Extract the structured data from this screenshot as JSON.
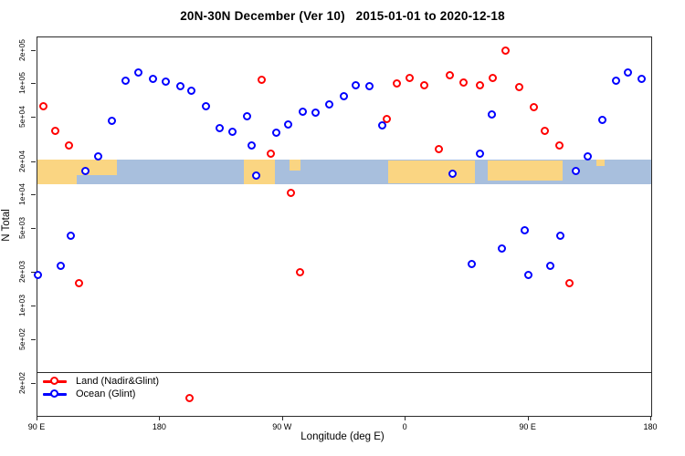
{
  "title": "20N-30N December (Ver 10)   2015-01-01 to 2020-12-18",
  "colors": {
    "land_marker": "#FF0000",
    "ocean_marker": "#0000FF",
    "band_ocean": "#A8BFDD",
    "band_land": "#FAD582",
    "axis": "#2b2b2b"
  },
  "chart_data": {
    "type": "scatter",
    "title": "20N-30N December (Ver 10)  2015-01-01 to 2020-12-18",
    "xlabel": "Longitude (deg E)",
    "ylabel": "N Total",
    "grid": false,
    "x_axis": {
      "note": "longitude increases eastward from 90E, wrapping through 180, 90W, 0, 90E to 180",
      "lon_min": 90,
      "lon_max": 540,
      "ticks": [
        {
          "lon": 90,
          "label": "90 E"
        },
        {
          "lon": 180,
          "label": "180"
        },
        {
          "lon": 270,
          "label": "90 W"
        },
        {
          "lon": 360,
          "label": "0"
        },
        {
          "lon": 450,
          "label": "90 E"
        },
        {
          "lon": 540,
          "label": "180"
        }
      ]
    },
    "y_axis": {
      "scale": "log",
      "min": 104,
      "max": 263000,
      "ticks": [
        {
          "value": 200000,
          "label": "2e+05"
        },
        {
          "value": 100000,
          "label": "1e+05"
        },
        {
          "value": 50000,
          "label": "5e+04"
        },
        {
          "value": 20000,
          "label": "2e+04"
        },
        {
          "value": 10000,
          "label": "1e+04"
        },
        {
          "value": 5000,
          "label": "5e+03"
        },
        {
          "value": 2000,
          "label": "2e+03"
        },
        {
          "value": 1000,
          "label": "1e+03"
        },
        {
          "value": 500,
          "label": "5e+02"
        },
        {
          "value": 200,
          "label": "2e+02"
        }
      ]
    },
    "threshold_line_value": 260,
    "map_band": {
      "value_top": 21000,
      "value_bottom": 12600,
      "land_segments": [
        {
          "lon0": 90,
          "lon1": 148,
          "top": 0.0,
          "height": 0.62
        },
        {
          "lon0": 90,
          "lon1": 119,
          "top": 0.0,
          "height": 1.0
        },
        {
          "lon0": 241,
          "lon1": 264,
          "top": 0.0,
          "height": 1.0
        },
        {
          "lon0": 275,
          "lon1": 283,
          "top": 0.0,
          "height": 0.45
        },
        {
          "lon0": 347,
          "lon1": 411,
          "top": 0.05,
          "height": 0.9
        },
        {
          "lon0": 420,
          "lon1": 475,
          "top": 0.05,
          "height": 0.82
        },
        {
          "lon0": 500,
          "lon1": 506,
          "top": 0.0,
          "height": 0.25
        }
      ]
    },
    "series": [
      {
        "name": "Land (Nadir&Glint)",
        "color": "#FF0000",
        "points": [
          [
            94.5,
            63000
          ],
          [
            103.4,
            38000
          ],
          [
            113.4,
            28000
          ],
          [
            120.8,
            1600
          ],
          [
            201.8,
            150
          ],
          [
            254.7,
            108000
          ],
          [
            261.4,
            23500
          ],
          [
            276.1,
            10500
          ],
          [
            282.8,
            2000
          ],
          [
            346.4,
            48000
          ],
          [
            353.8,
            100000
          ],
          [
            363.2,
            113000
          ],
          [
            373.9,
            97000
          ],
          [
            384.6,
            26000
          ],
          [
            392.7,
            119000
          ],
          [
            402.7,
            103000
          ],
          [
            414.7,
            97000
          ],
          [
            424.1,
            113000
          ],
          [
            433.5,
            198000
          ],
          [
            443.5,
            93000
          ],
          [
            454.2,
            62000
          ],
          [
            462.3,
            38000
          ],
          [
            473.0,
            28000
          ],
          [
            480.4,
            1600
          ]
        ]
      },
      {
        "name": "Ocean (Glint)",
        "color": "#0000FF",
        "points": [
          [
            90.7,
            1900
          ],
          [
            107.4,
            2300
          ],
          [
            114.8,
            4300
          ],
          [
            125.5,
            16500
          ],
          [
            134.9,
            22000
          ],
          [
            144.9,
            46000
          ],
          [
            154.9,
            106000
          ],
          [
            164.3,
            125000
          ],
          [
            175.0,
            110000
          ],
          [
            184.4,
            104000
          ],
          [
            195.1,
            95000
          ],
          [
            203.2,
            86000
          ],
          [
            213.9,
            63000
          ],
          [
            223.9,
            40000
          ],
          [
            233.3,
            37000
          ],
          [
            244.0,
            51000
          ],
          [
            247.3,
            28000
          ],
          [
            250.7,
            15000
          ],
          [
            265.4,
            36000
          ],
          [
            274.1,
            43000
          ],
          [
            284.8,
            56000
          ],
          [
            294.2,
            55000
          ],
          [
            304.3,
            65000
          ],
          [
            315.0,
            77000
          ],
          [
            323.7,
            97000
          ],
          [
            333.7,
            95000
          ],
          [
            343.1,
            42000
          ],
          [
            394.7,
            15500
          ],
          [
            408.7,
            2400
          ],
          [
            414.7,
            23500
          ],
          [
            423.4,
            53000
          ],
          [
            430.8,
            3300
          ],
          [
            447.5,
            4800
          ],
          [
            450.2,
            1900
          ],
          [
            466.3,
            2300
          ],
          [
            473.6,
            4300
          ],
          [
            485.0,
            16500
          ],
          [
            493.7,
            22000
          ],
          [
            504.4,
            47000
          ],
          [
            514.5,
            106000
          ],
          [
            523.2,
            125000
          ],
          [
            533.2,
            110000
          ]
        ]
      }
    ],
    "legend": {
      "position": "bottom-left",
      "entries": [
        {
          "label": "Land (Nadir&Glint)",
          "color": "#FF0000"
        },
        {
          "label": "Ocean (Glint)",
          "color": "#0000FF"
        }
      ]
    }
  }
}
